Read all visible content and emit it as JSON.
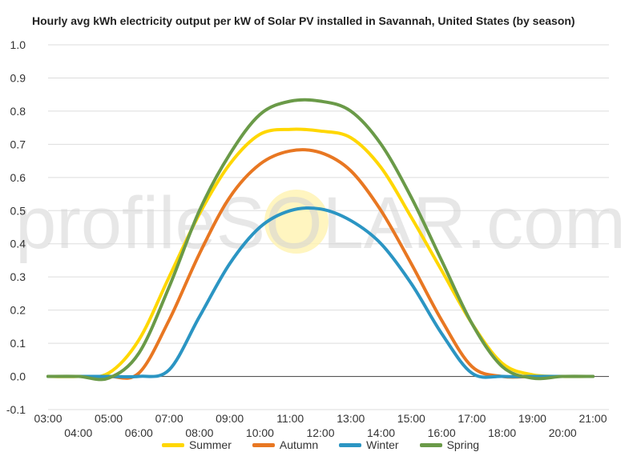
{
  "chart_data": {
    "type": "line",
    "title": "Hourly avg kWh electricity output per kW of Solar PV installed in Savannah, United States (by season)",
    "watermark": "profileSOLAR.com",
    "x": [
      "03:00",
      "04:00",
      "05:00",
      "06:00",
      "07:00",
      "08:00",
      "09:00",
      "10:00",
      "11:00",
      "12:00",
      "13:00",
      "14:00",
      "15:00",
      "16:00",
      "17:00",
      "18:00",
      "19:00",
      "20:00",
      "21:00"
    ],
    "ylim": [
      -0.1,
      1.0
    ],
    "yticks": [
      "-0.1",
      "0.0",
      "0.1",
      "0.2",
      "0.3",
      "0.4",
      "0.5",
      "0.6",
      "0.7",
      "0.8",
      "0.9",
      "1.0"
    ],
    "grid": true,
    "legend_position": "bottom",
    "series": [
      {
        "name": "Summer",
        "color": "#FFD700",
        "values": [
          0,
          0,
          0.01,
          0.11,
          0.3,
          0.49,
          0.64,
          0.73,
          0.745,
          0.74,
          0.72,
          0.63,
          0.48,
          0.32,
          0.16,
          0.04,
          0.005,
          0,
          0
        ]
      },
      {
        "name": "Autumn",
        "color": "#E87722",
        "values": [
          0,
          0,
          0,
          0.01,
          0.17,
          0.37,
          0.54,
          0.64,
          0.68,
          0.675,
          0.62,
          0.5,
          0.34,
          0.17,
          0.03,
          0,
          0,
          0,
          0
        ]
      },
      {
        "name": "Winter",
        "color": "#2B95C3",
        "values": [
          0,
          0,
          0,
          0,
          0.02,
          0.18,
          0.34,
          0.45,
          0.5,
          0.505,
          0.47,
          0.4,
          0.28,
          0.13,
          0.01,
          0,
          0,
          0,
          0
        ]
      },
      {
        "name": "Spring",
        "color": "#6A9A48",
        "values": [
          0,
          0,
          -0.005,
          0.07,
          0.27,
          0.5,
          0.67,
          0.79,
          0.83,
          0.83,
          0.8,
          0.7,
          0.54,
          0.35,
          0.16,
          0.03,
          -0.005,
          0,
          0
        ]
      }
    ]
  }
}
